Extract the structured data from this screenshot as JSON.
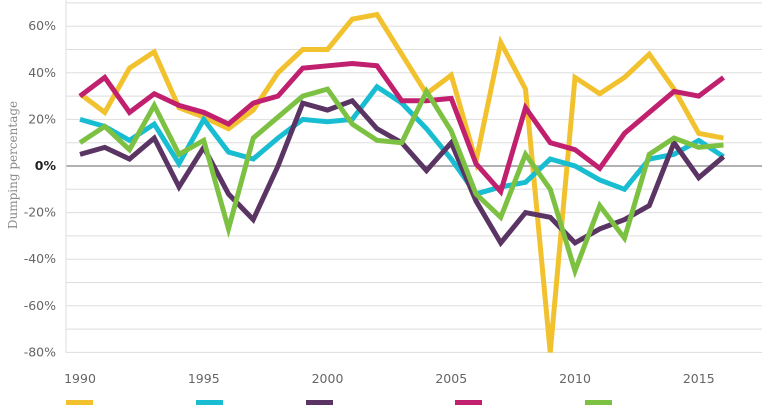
{
  "chart_data": {
    "type": "line",
    "title": "",
    "xlabel": "",
    "ylabel": "Dumping percentage",
    "x": [
      1990,
      1991,
      1992,
      1993,
      1994,
      1995,
      1996,
      1997,
      1998,
      1999,
      2000,
      2001,
      2002,
      2003,
      2004,
      2005,
      2006,
      2007,
      2008,
      2009,
      2010,
      2011,
      2012,
      2013,
      2014,
      2015,
      2016
    ],
    "xticks": [
      1990,
      1995,
      2000,
      2005,
      2010,
      2015
    ],
    "xtick_labels": [
      "1990",
      "1995",
      "2000",
      "2005",
      "2010",
      "2015"
    ],
    "ylim": [
      -80,
      70
    ],
    "yticks": [
      60,
      40,
      20,
      0,
      -20,
      -40,
      -60,
      -80
    ],
    "ytick_labels": [
      "60%",
      "40%",
      "20%",
      "0%",
      "-20%",
      "-40%",
      "-60%",
      "-80%"
    ],
    "grid": true,
    "legend": "bottom",
    "series": [
      {
        "color": "#F2C12E",
        "values": [
          31,
          23,
          42,
          49,
          25,
          21,
          16,
          24,
          40,
          50,
          50,
          63,
          65,
          48,
          31,
          39,
          2,
          53,
          33,
          -80,
          38,
          31,
          38,
          48,
          33,
          14,
          12
        ]
      },
      {
        "color": "#19BDD1",
        "values": [
          20,
          17,
          11,
          18,
          1,
          20,
          6,
          3,
          12,
          20,
          19,
          20,
          34,
          27,
          16,
          3,
          -12,
          -9,
          -7,
          3,
          0,
          -6,
          -10,
          3,
          5,
          11,
          4
        ]
      },
      {
        "color": "#5A3463",
        "values": [
          5,
          8,
          3,
          12,
          -9,
          8,
          -12,
          -23,
          0,
          27,
          24,
          28,
          16,
          10,
          -2,
          10,
          -15,
          -33,
          -20,
          -22,
          -33,
          -27,
          -23,
          -17,
          10,
          -5,
          4
        ]
      },
      {
        "color": "#C0206E",
        "values": [
          30,
          38,
          23,
          31,
          26,
          23,
          18,
          27,
          30,
          42,
          43,
          44,
          43,
          28,
          28,
          29,
          1,
          -11,
          25,
          10,
          7,
          -1,
          14,
          23,
          32,
          30,
          38
        ]
      },
      {
        "color": "#7DC142",
        "values": [
          10,
          17,
          7,
          26,
          5,
          11,
          -27,
          12,
          21,
          30,
          33,
          18,
          11,
          10,
          32,
          15,
          -12,
          -22,
          5,
          -10,
          -45,
          -17,
          -31,
          5,
          12,
          8,
          9
        ]
      }
    ]
  }
}
